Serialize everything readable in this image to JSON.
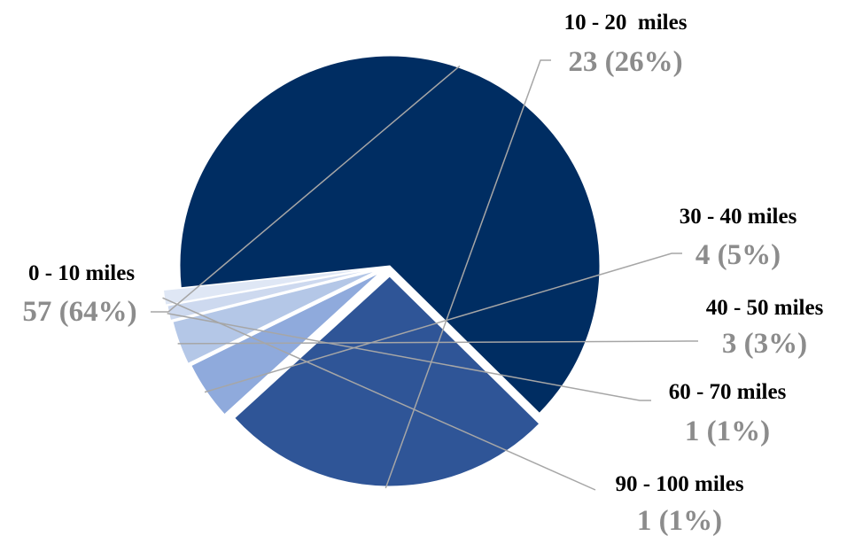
{
  "chart_data": {
    "type": "pie",
    "title": "",
    "slices": [
      {
        "label": "0 - 10 miles",
        "value": 57,
        "percent": "64%",
        "value_text": "57 (64%)",
        "color": "#002d62"
      },
      {
        "label": "10 - 20  miles",
        "value": 23,
        "percent": "26%",
        "value_text": "23 (26%)",
        "color": "#2f5597"
      },
      {
        "label": "30 - 40 miles",
        "value": 4,
        "percent": "5%",
        "value_text": "4 (5%)",
        "color": "#8faadc"
      },
      {
        "label": "40 - 50 miles",
        "value": 3,
        "percent": "3%",
        "value_text": "3 (3%)",
        "color": "#b4c7e7"
      },
      {
        "label": "60 - 70 miles",
        "value": 1,
        "percent": "1%",
        "value_text": "1 (1%)",
        "color": "#cdd9ef"
      },
      {
        "label": "90 - 100 miles",
        "value": 1,
        "percent": "1%",
        "value_text": "1 (1%)",
        "color": "#dfe7f5"
      }
    ],
    "exploded": true,
    "legend": "none",
    "data_labels": "outside with leader lines"
  }
}
